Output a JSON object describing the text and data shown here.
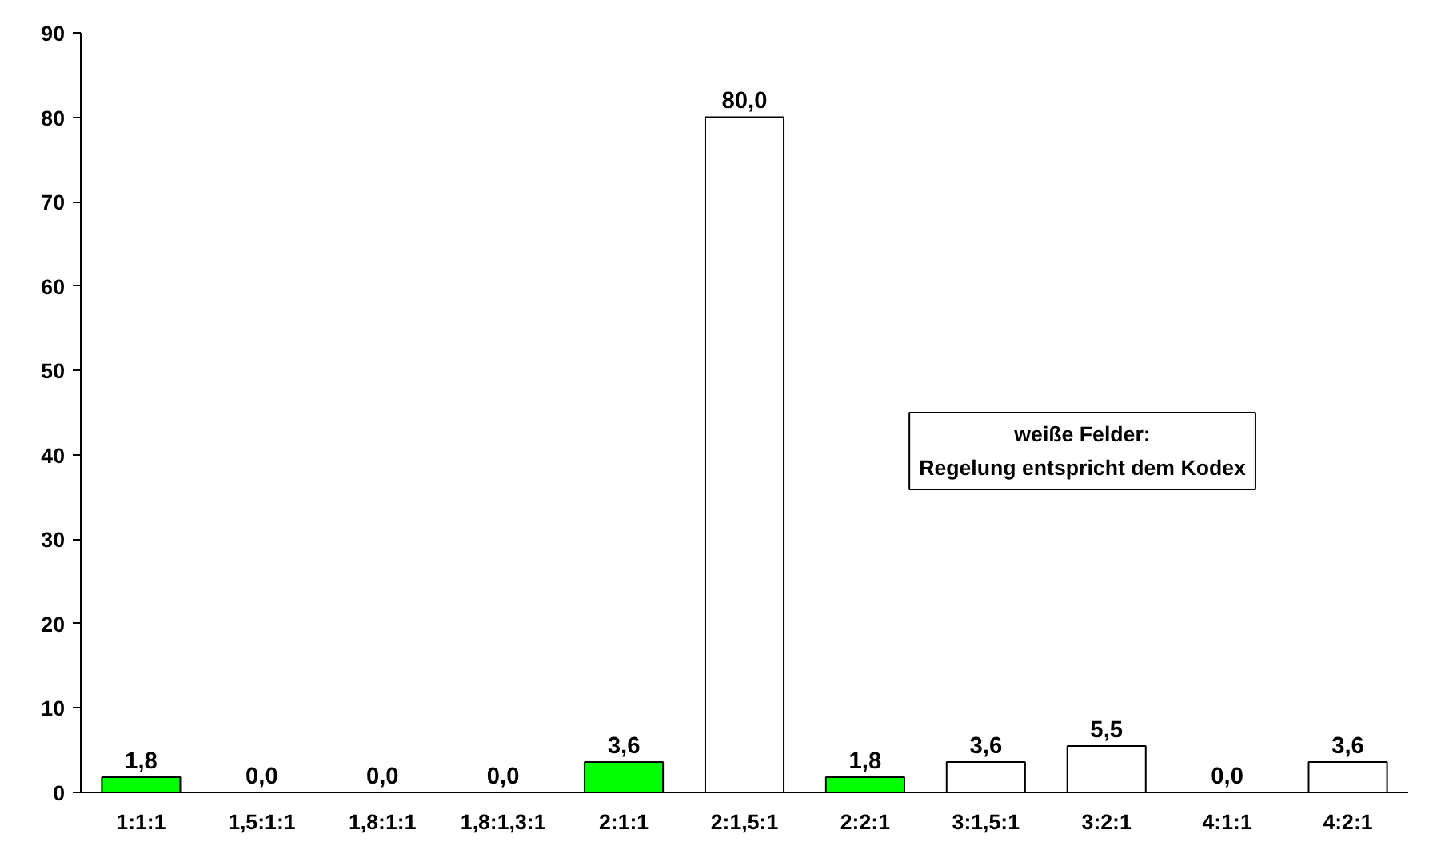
{
  "chart_data": {
    "type": "bar",
    "categories": [
      "1:1:1",
      "1,5:1:1",
      "1,8:1:1",
      "1,8:1,3:1",
      "2:1:1",
      "2:1,5:1",
      "2:2:1",
      "3:1,5:1",
      "3:2:1",
      "4:1:1",
      "4:2:1"
    ],
    "values": [
      1.8,
      0,
      0,
      0,
      3.6,
      80,
      1.8,
      3.6,
      5.5,
      0,
      3.6
    ],
    "value_labels": [
      "1,8",
      "0,0",
      "0,0",
      "0,0",
      "3,6",
      "80,0",
      "1,8",
      "3,6",
      "5,5",
      "0,0",
      "3,6"
    ],
    "colors": [
      "#00ff00",
      "#ffffff",
      "#ffffff",
      "#ffffff",
      "#00ff00",
      "#ffffff",
      "#00ff00",
      "#ffffff",
      "#ffffff",
      "#ffffff",
      "#ffffff"
    ],
    "ylim": [
      0,
      90
    ],
    "yticks": [
      0,
      10,
      20,
      30,
      40,
      50,
      60,
      70,
      80,
      90
    ],
    "grid": false,
    "annotations": [
      "weiße Felder:\nRegelung entspricht dem Kodex"
    ]
  }
}
